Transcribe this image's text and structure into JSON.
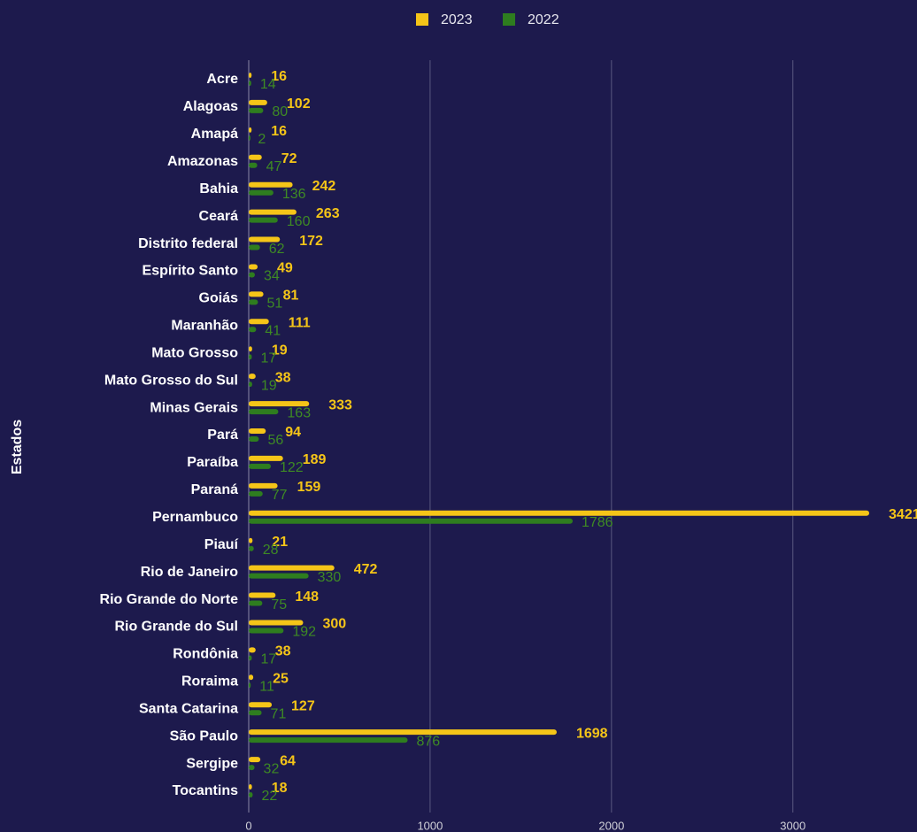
{
  "chart_data": {
    "type": "barh",
    "y_label": "Estados",
    "categories": [
      "Acre",
      "Alagoas",
      "Amapá",
      "Amazonas",
      "Bahia",
      "Ceará",
      "Distrito federal",
      "Espírito Santo",
      "Goiás",
      "Maranhão",
      "Mato Grosso",
      "Mato Grosso do Sul",
      "Minas Gerais",
      "Pará",
      "Paraíba",
      "Paraná",
      "Pernambuco",
      "Piauí",
      "Rio de Janeiro",
      "Rio Grande do Norte",
      "Rio Grande do Sul",
      "Rondônia",
      "Roraima",
      "Santa Catarina",
      "São Paulo",
      "Sergipe",
      "Tocantins"
    ],
    "series": [
      {
        "name": "2023",
        "color": "#f5c518",
        "values": [
          16,
          102,
          16,
          72,
          242,
          263,
          172,
          49,
          81,
          111,
          19,
          38,
          333,
          94,
          189,
          159,
          3421,
          21,
          472,
          148,
          300,
          38,
          25,
          127,
          1698,
          64,
          18
        ]
      },
      {
        "name": "2022",
        "color": "#2e7d1f",
        "values": [
          14,
          80,
          2,
          47,
          136,
          160,
          62,
          34,
          51,
          41,
          17,
          19,
          163,
          56,
          122,
          77,
          1786,
          28,
          330,
          75,
          192,
          17,
          11,
          71,
          876,
          32,
          22
        ]
      }
    ],
    "xlim": [
      0,
      3660
    ],
    "xticks": [
      0,
      1000,
      2000,
      3000
    ],
    "grid": true,
    "legend": "top"
  }
}
